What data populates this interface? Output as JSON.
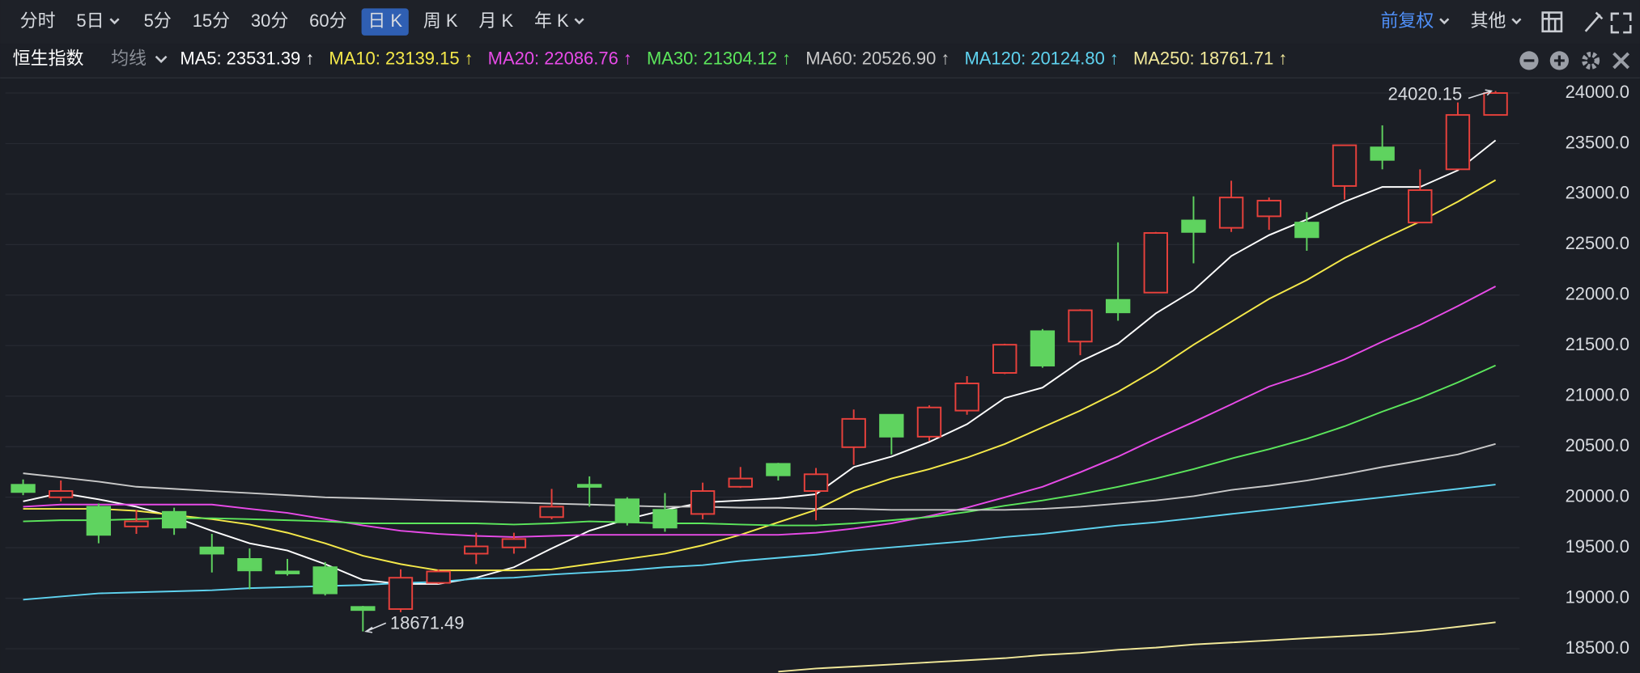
{
  "toolbar": {
    "tabs": [
      "分时",
      "5日",
      "5分",
      "15分",
      "30分",
      "60分",
      "日 K",
      "周 K",
      "月 K",
      "年 K"
    ],
    "adjust": "前复权",
    "more": "其他"
  },
  "chart_data": {
    "type": "candlestick",
    "symbol": "恒生指数",
    "indicator": "均线",
    "up_color": "#e8413c",
    "down_color": "#5fd35f",
    "ylim": [
      18260,
      24145
    ],
    "yticks": [
      {
        "value": 24000,
        "label": "24000.0"
      },
      {
        "value": 23500,
        "label": "23500.0"
      },
      {
        "value": 23000,
        "label": "23000.0"
      },
      {
        "value": 22500,
        "label": "22500.0"
      },
      {
        "value": 22000,
        "label": "22000.0"
      },
      {
        "value": 21500,
        "label": "21500.0"
      },
      {
        "value": 21000,
        "label": "21000.0"
      },
      {
        "value": 20500,
        "label": "20500.0"
      },
      {
        "value": 20000,
        "label": "20000.0"
      },
      {
        "value": 19500,
        "label": "19500.0"
      },
      {
        "value": 19000,
        "label": "19000.0"
      },
      {
        "value": 18500,
        "label": "18500.0"
      }
    ],
    "grid": true,
    "open": [
      20123,
      19999,
      19906,
      19710,
      19855,
      19503,
      19389,
      19265,
      19307,
      18914,
      18893,
      19152,
      19441,
      19503,
      19803,
      20123,
      19979,
      19875,
      19834,
      20103,
      20330,
      20061,
      20495,
      20816,
      20599,
      20857,
      21230,
      21643,
      21540,
      21953,
      22025,
      22739,
      22666,
      22780,
      22718,
      23080,
      23462,
      22718,
      23245,
      23783
    ],
    "high": [
      20175,
      20165,
      19937,
      19875,
      19896,
      19637,
      19493,
      19389,
      19358,
      18924,
      19286,
      19286,
      19648,
      19648,
      20082,
      20206,
      20000,
      20041,
      20144,
      20299,
      20340,
      20289,
      20868,
      20816,
      20909,
      21198,
      21519,
      21664,
      21860,
      22522,
      22625,
      22977,
      23132,
      22966,
      22821,
      23483,
      23680,
      23245,
      23907,
      24020.15
    ],
    "low": [
      20020,
      19958,
      19544,
      19637,
      19627,
      19255,
      19089,
      19224,
      19027,
      18671.49,
      18862,
      19141,
      19338,
      19441,
      19782,
      19906,
      19720,
      19658,
      19782,
      20092,
      20165,
      19772,
      20320,
      20423,
      20557,
      20816,
      21219,
      21281,
      21405,
      21746,
      22025,
      22315,
      22625,
      22646,
      22439,
      22946,
      23245,
      22718,
      23245,
      23783
    ],
    "close": [
      20051,
      20061,
      19627,
      19761,
      19699,
      19441,
      19275,
      19245,
      19048,
      18883,
      19203,
      19265,
      19513,
      19586,
      19906,
      20102,
      19751,
      19699,
      20061,
      20185,
      20216,
      20227,
      20775,
      20599,
      20888,
      21126,
      21509,
      21302,
      21850,
      21829,
      22615,
      22625,
      22966,
      22935,
      22573,
      23483,
      23338,
      23039,
      23783,
      24000
    ],
    "annotations": [
      {
        "text": "24020.15"
      },
      {
        "text": "18671.49"
      }
    ],
    "series": [
      {
        "name": "MA5: 23531.39 ↑",
        "color": "#ffffff",
        "values": [
          19958,
          20041,
          19979,
          19906,
          19803,
          19668,
          19544,
          19472,
          19338,
          19182,
          19141,
          19141,
          19203,
          19307,
          19493,
          19668,
          19782,
          19875,
          19948,
          19968,
          19989,
          20030,
          20299,
          20402,
          20547,
          20723,
          20981,
          21085,
          21343,
          21519,
          21819,
          22046,
          22387,
          22594,
          22749,
          22925,
          23070,
          23070,
          23235,
          23531.39
        ]
      },
      {
        "name": "MA10: 23139.15 ↑",
        "color": "#f5e94a",
        "values": [
          19885,
          19885,
          19885,
          19865,
          19823,
          19782,
          19730,
          19648,
          19544,
          19420,
          19338,
          19276,
          19276,
          19276,
          19286,
          19338,
          19389,
          19441,
          19524,
          19627,
          19751,
          19875,
          20061,
          20185,
          20278,
          20392,
          20526,
          20692,
          20857,
          21043,
          21260,
          21509,
          21736,
          21963,
          22149,
          22367,
          22553,
          22728,
          22925,
          23139.15
        ]
      },
      {
        "name": "MA20: 22086.76 ↑",
        "color": "#e84be8",
        "values": [
          19906,
          19927,
          19927,
          19927,
          19927,
          19927,
          19885,
          19844,
          19782,
          19720,
          19668,
          19637,
          19617,
          19606,
          19617,
          19627,
          19627,
          19627,
          19627,
          19627,
          19627,
          19648,
          19689,
          19741,
          19813,
          19896,
          19999,
          20103,
          20247,
          20402,
          20578,
          20744,
          20919,
          21095,
          21219,
          21364,
          21540,
          21705,
          21891,
          22086.76
        ]
      },
      {
        "name": "MA30: 21304.12 ↑",
        "color": "#5ce65c",
        "values": [
          19761,
          19772,
          19772,
          19782,
          19792,
          19792,
          19782,
          19772,
          19761,
          19741,
          19741,
          19741,
          19741,
          19730,
          19741,
          19761,
          19751,
          19741,
          19741,
          19730,
          19720,
          19720,
          19741,
          19772,
          19803,
          19854,
          19916,
          19968,
          20030,
          20103,
          20185,
          20278,
          20382,
          20475,
          20578,
          20702,
          20847,
          20981,
          21136,
          21304.12
        ]
      },
      {
        "name": "MA60: 20526.90 ↑",
        "color": "#c8c8c8",
        "values": [
          20237,
          20196,
          20154,
          20103,
          20082,
          20061,
          20041,
          20020,
          19999,
          19989,
          19979,
          19968,
          19958,
          19948,
          19937,
          19927,
          19916,
          19906,
          19906,
          19896,
          19896,
          19885,
          19885,
          19875,
          19875,
          19875,
          19875,
          19885,
          19906,
          19937,
          19968,
          20010,
          20072,
          20113,
          20165,
          20227,
          20299,
          20361,
          20423,
          20526.9
        ]
      },
      {
        "name": "MA120: 20124.80 ↑",
        "color": "#5fd3f0",
        "values": [
          18986,
          19017,
          19048,
          19058,
          19069,
          19079,
          19100,
          19110,
          19120,
          19131,
          19151,
          19162,
          19193,
          19203,
          19234,
          19255,
          19276,
          19307,
          19327,
          19369,
          19400,
          19431,
          19472,
          19503,
          19534,
          19565,
          19606,
          19637,
          19679,
          19720,
          19751,
          19792,
          19834,
          19875,
          19916,
          19958,
          19999,
          20041,
          20082,
          20124.8
        ]
      },
      {
        "name": "MA250: 18761.71 ↑",
        "color": "#f2e99a",
        "values": [
          null,
          null,
          null,
          null,
          null,
          null,
          null,
          null,
          null,
          null,
          null,
          null,
          null,
          null,
          null,
          null,
          null,
          null,
          null,
          null,
          18273,
          18304,
          18324,
          18345,
          18366,
          18386,
          18407,
          18438,
          18459,
          18490,
          18511,
          18542,
          18562,
          18583,
          18604,
          18624,
          18645,
          18676,
          18717,
          18761.71
        ]
      }
    ]
  }
}
